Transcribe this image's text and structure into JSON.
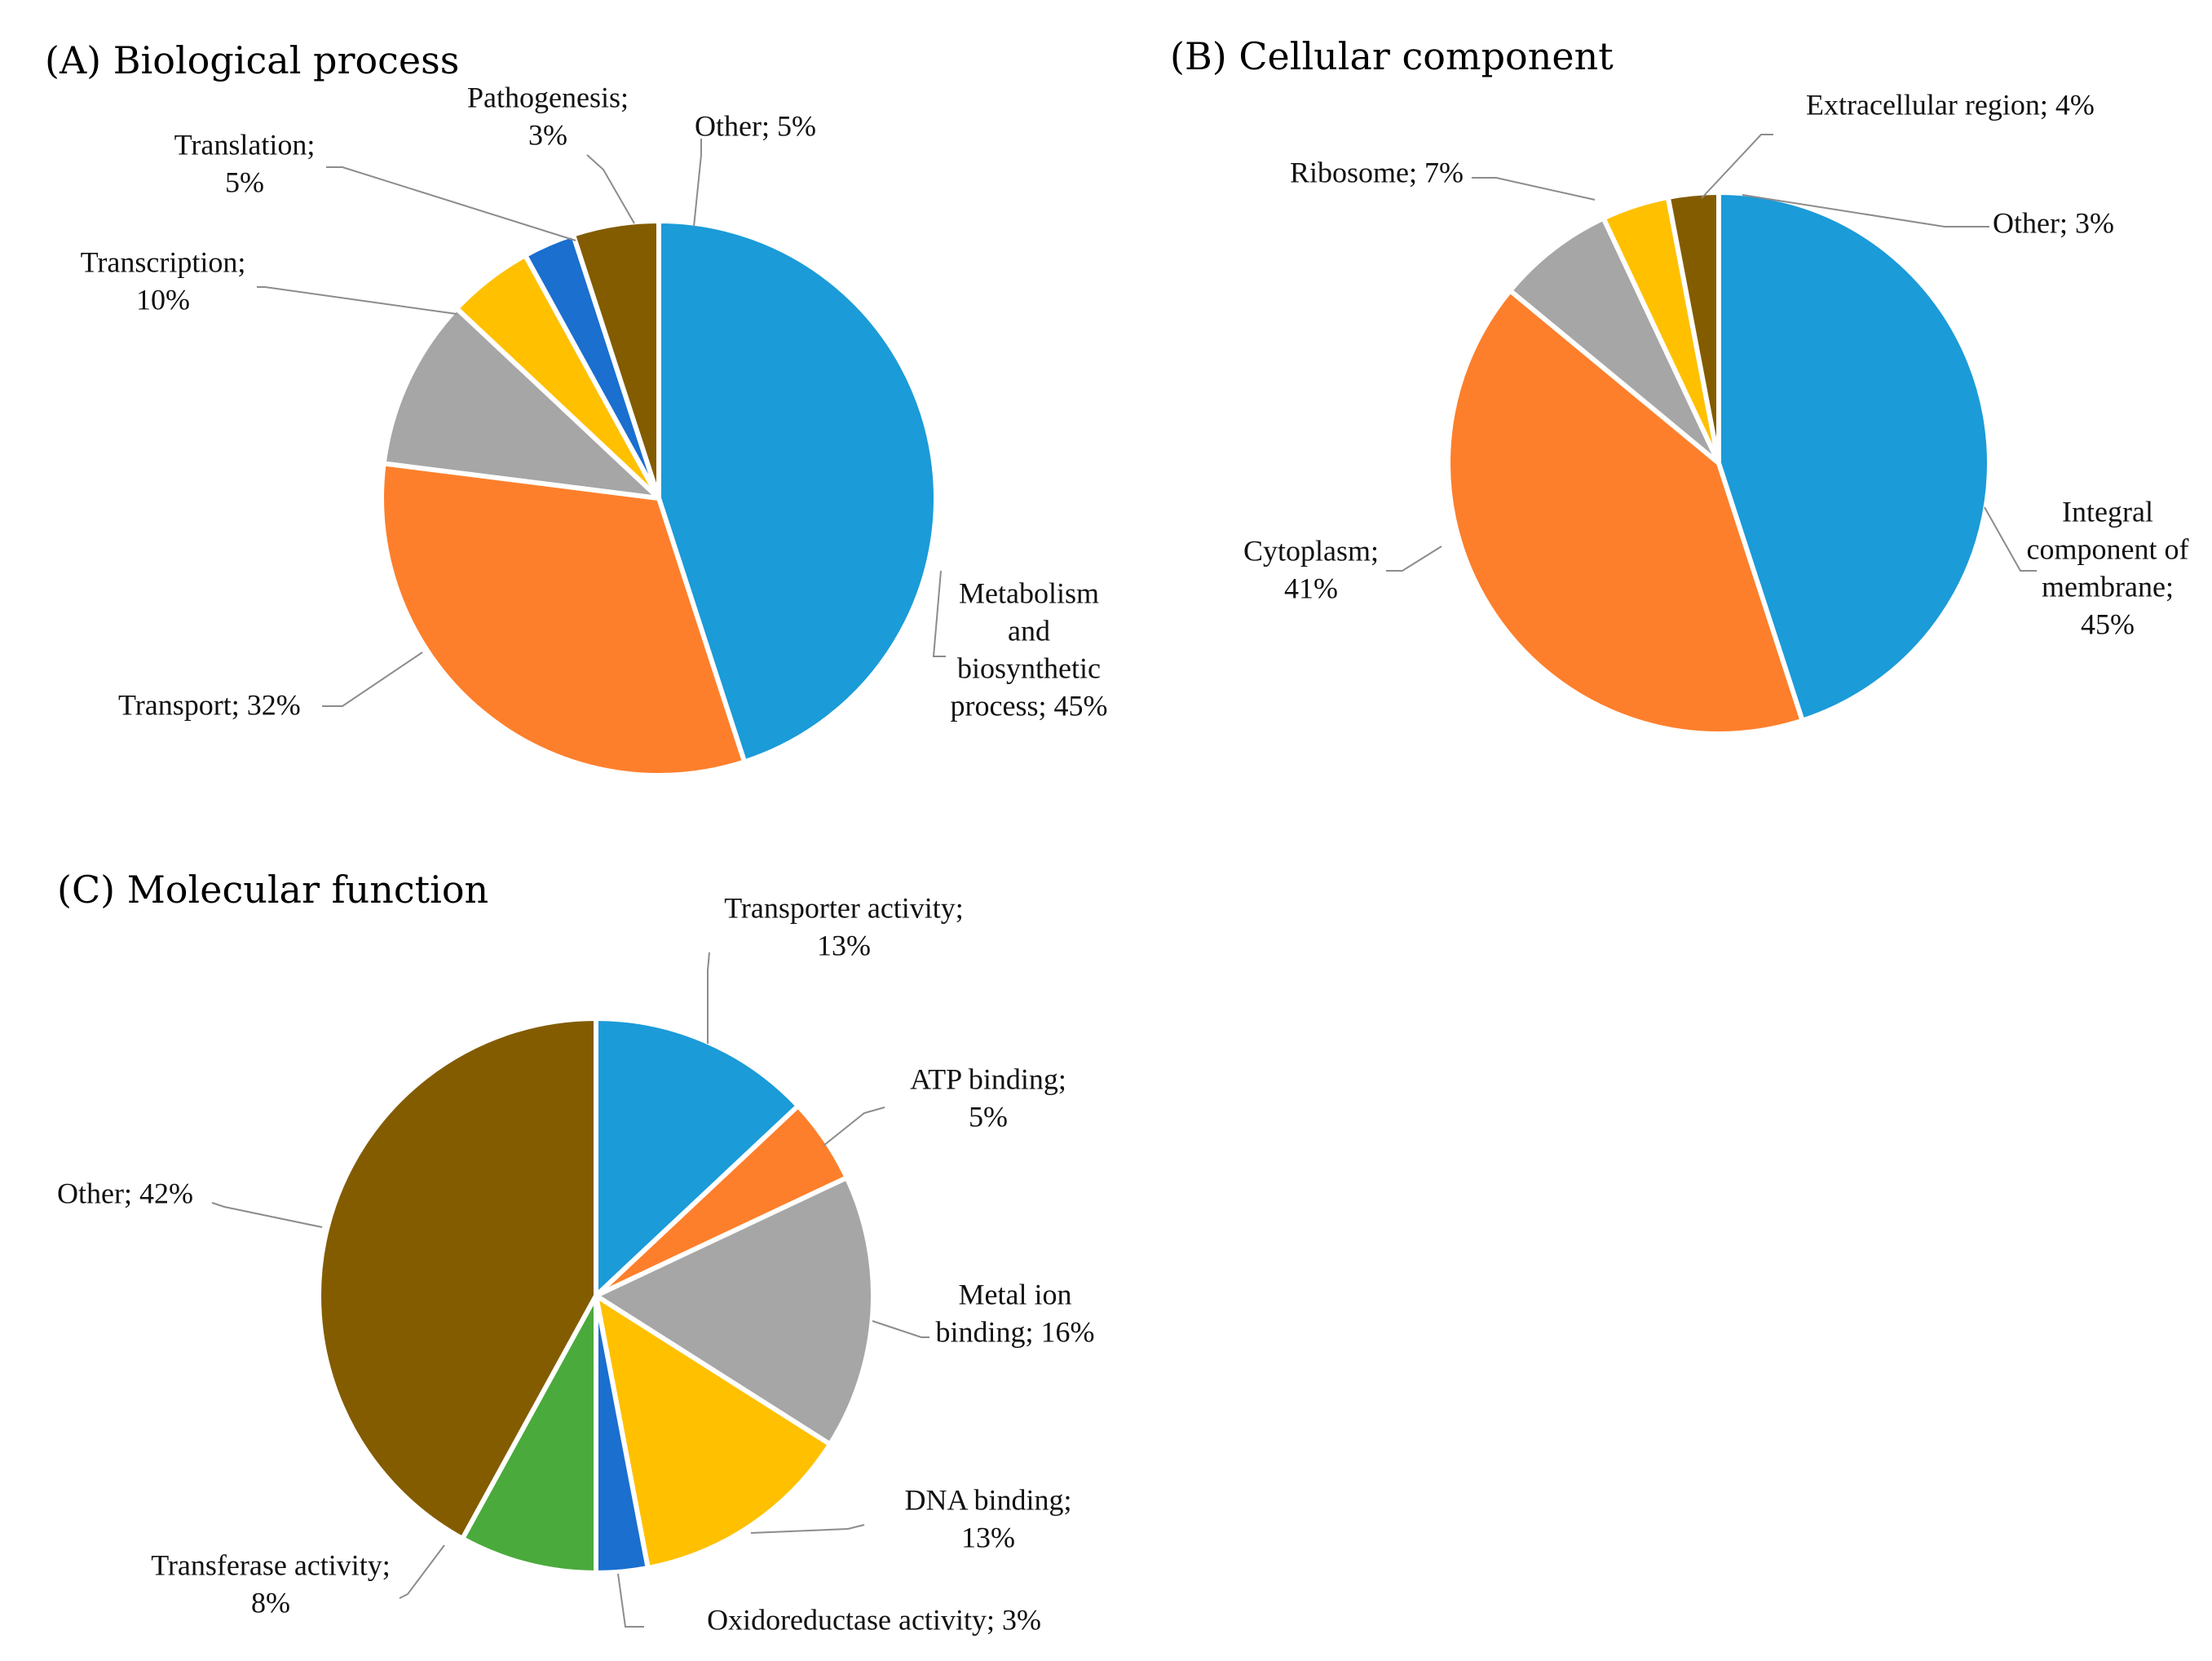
{
  "chart_data": [
    {
      "id": "A",
      "type": "pie",
      "title": "(A) Biological  process",
      "slices": [
        {
          "name": "Metabolism and biosynthetic process",
          "value": 45,
          "color": "#1b9bd8",
          "label": [
            "Metabolism",
            "and",
            "biosynthetic",
            "process; 45%"
          ]
        },
        {
          "name": "Transport",
          "value": 32,
          "color": "#fd7f2c",
          "label": [
            "Transport; 32%"
          ]
        },
        {
          "name": "Transcription",
          "value": 10,
          "color": "#a6a6a6",
          "label": [
            "Transcription;",
            "10%"
          ]
        },
        {
          "name": "Translation",
          "value": 5,
          "color": "#ffc000",
          "label": [
            "Translation;",
            "5%"
          ]
        },
        {
          "name": "Pathogenesis",
          "value": 3,
          "color": "#1a6fcf",
          "label": [
            "Pathogenesis;",
            "3%"
          ]
        },
        {
          "name": "Other",
          "value": 5,
          "color": "#835c00",
          "label": [
            "Other; 5%"
          ]
        }
      ]
    },
    {
      "id": "B",
      "type": "pie",
      "title": "(B) Cellular  component",
      "slices": [
        {
          "name": "Integral component of membrane",
          "value": 45,
          "color": "#1b9bd8",
          "label": [
            "Integral",
            "component of",
            "membrane;",
            "45%"
          ]
        },
        {
          "name": "Cytoplasm",
          "value": 41,
          "color": "#fd7f2c",
          "label": [
            "Cytoplasm;",
            "41%"
          ]
        },
        {
          "name": "Ribosome",
          "value": 7,
          "color": "#a6a6a6",
          "label": [
            "Ribosome; 7%"
          ]
        },
        {
          "name": "Extracellular region",
          "value": 4,
          "color": "#ffc000",
          "label": [
            "Extracellular  region; 4%"
          ]
        },
        {
          "name": "Other",
          "value": 3,
          "color": "#835c00",
          "label": [
            "Other; 3%"
          ]
        }
      ]
    },
    {
      "id": "C",
      "type": "pie",
      "title": "(C) Molecular  function",
      "slices": [
        {
          "name": "Transporter activity",
          "value": 13,
          "color": "#1b9bd8",
          "label": [
            "Transporter activity;",
            "13%"
          ]
        },
        {
          "name": "ATP binding",
          "value": 5,
          "color": "#fd7f2c",
          "label": [
            "ATP binding;",
            "5%"
          ]
        },
        {
          "name": "Metal ion binding",
          "value": 16,
          "color": "#a6a6a6",
          "label": [
            "Metal ion",
            "binding;  16%"
          ]
        },
        {
          "name": "DNA binding",
          "value": 13,
          "color": "#ffc000",
          "label": [
            "DNA binding;",
            "13%"
          ]
        },
        {
          "name": "Oxidoreductase activity",
          "value": 3,
          "color": "#1a6fcf",
          "label": [
            "Oxidoreductase activity; 3%"
          ]
        },
        {
          "name": "Transferase activity",
          "value": 8,
          "color": "#4aaa3c",
          "label": [
            "Transferase activity;",
            "8%"
          ]
        },
        {
          "name": "Other",
          "value": 42,
          "color": "#835c00",
          "label": [
            "Other; 42%"
          ]
        }
      ]
    }
  ]
}
